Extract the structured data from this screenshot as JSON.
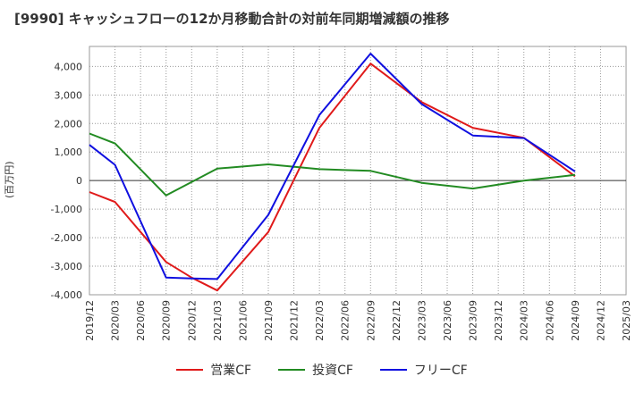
{
  "chart_data": {
    "type": "line",
    "title": "[9990]  キャッシュフローの12か月移動合計の対前年同期増減額の推移",
    "ylabel": "(百万円)",
    "xlabel": "",
    "ylim": [
      -4000,
      4700
    ],
    "yticks": [
      -4000,
      -3000,
      -2000,
      -1000,
      0,
      1000,
      2000,
      3000,
      4000
    ],
    "ytick_labels": [
      "-4,000",
      "-3,000",
      "-2,000",
      "-1,000",
      "0",
      "1,000",
      "2,000",
      "3,000",
      "4,000"
    ],
    "categories": [
      "2019/12",
      "2020/03",
      "2020/06",
      "2020/09",
      "2020/12",
      "2021/03",
      "2021/06",
      "2021/09",
      "2021/12",
      "2022/03",
      "2022/06",
      "2022/09",
      "2022/12",
      "2023/03",
      "2023/06",
      "2023/09",
      "2023/12",
      "2024/03",
      "2024/06",
      "2024/09",
      "2024/12",
      "2025/03"
    ],
    "grid": true,
    "legend_position": "bottom",
    "series": [
      {
        "name": "営業CF",
        "color": "#e01a1a",
        "values": [
          -400,
          -750,
          -1800,
          -2850,
          -3400,
          -3850,
          null,
          -1800,
          null,
          1850,
          null,
          4100,
          null,
          2750,
          null,
          1850,
          null,
          1500,
          null,
          150,
          null,
          null
        ]
      },
      {
        "name": "投資CF",
        "color": "#228b22",
        "values": [
          1650,
          1300,
          null,
          -520,
          null,
          420,
          null,
          570,
          null,
          400,
          null,
          340,
          null,
          -80,
          null,
          -280,
          null,
          0,
          null,
          200,
          null,
          null
        ]
      },
      {
        "name": "フリーCF",
        "color": "#1010e0",
        "values": [
          1250,
          550,
          null,
          -3400,
          -3430,
          -3450,
          null,
          -1200,
          null,
          2300,
          null,
          4450,
          null,
          2680,
          null,
          1580,
          null,
          1490,
          null,
          320,
          null,
          null
        ]
      }
    ]
  }
}
